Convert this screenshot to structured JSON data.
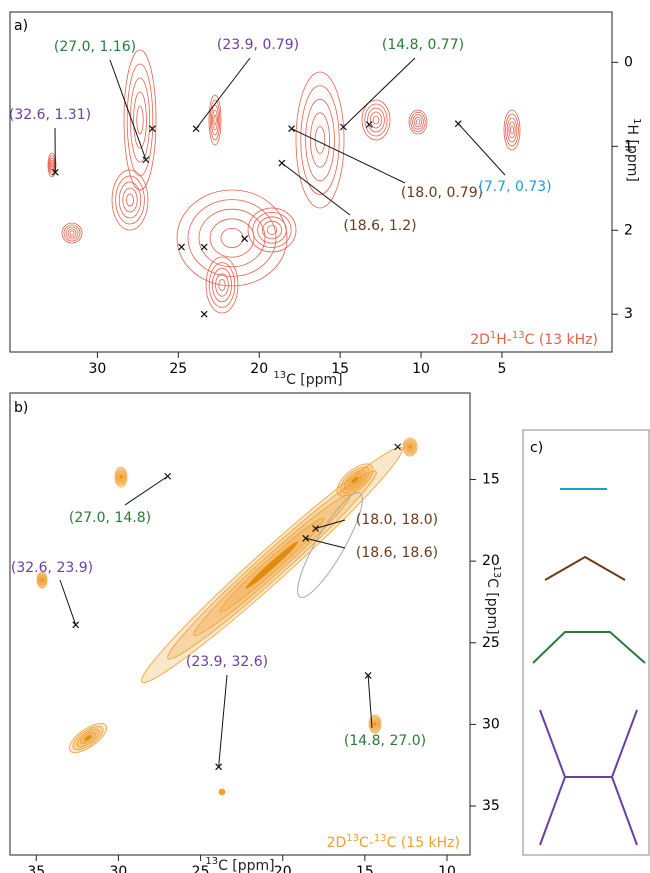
{
  "chart_data": [
    {
      "type": "scatter",
      "panel_label": "a)",
      "x_label": {
        "sup": "13",
        "text": "C [ppm]"
      },
      "y_label": {
        "sup": "1",
        "text": "H [ppm]"
      },
      "note": {
        "parts": [
          "2D",
          "1",
          "H-",
          "13",
          "C  (13 kHz)"
        ]
      },
      "xlim": [
        35.4,
        -1.8
      ],
      "ylim": [
        -0.6,
        3.45
      ],
      "xticks": [
        30,
        25,
        20,
        15,
        10,
        5
      ],
      "yticks": [
        0,
        1,
        2,
        3
      ],
      "color": "#e8604a",
      "points": {
        "x": [
          32.6,
          27.0,
          23.9,
          14.8,
          18.0,
          18.6,
          7.7,
          26.6,
          13.2,
          24.8,
          23.4,
          20.9,
          23.4
        ],
        "y": [
          1.31,
          1.16,
          0.79,
          0.77,
          0.79,
          1.2,
          0.73,
          0.79,
          0.74,
          2.2,
          2.2,
          2.1,
          3.0
        ]
      },
      "annotations": [
        {
          "text": "(32.6, 1.31)",
          "x": 32.6,
          "y": 1.31,
          "color": "#6a3fa0"
        },
        {
          "text": "(27.0, 1.16)",
          "x": 27.0,
          "y": 1.16,
          "color": "#2a7a3a"
        },
        {
          "text": "(23.9, 0.79)",
          "x": 23.9,
          "y": 0.79,
          "color": "#6a3fa0"
        },
        {
          "text": "(14.8, 0.77)",
          "x": 14.8,
          "y": 0.77,
          "color": "#2a7a3a"
        },
        {
          "text": "(18.0, 0.79)",
          "x": 18.0,
          "y": 0.79,
          "color": "#6b3a1a"
        },
        {
          "text": "(18.6, 1.2)",
          "x": 18.6,
          "y": 1.2,
          "color": "#6b3a1a"
        },
        {
          "text": "(7.7, 0.73)",
          "x": 7.7,
          "y": 0.73,
          "color": "#1aa0d8"
        }
      ]
    },
    {
      "type": "scatter",
      "panel_label": "b)",
      "x_label": {
        "sup": "13",
        "text": "C [ppm]"
      },
      "y_label": {
        "sup": "13",
        "text": "C [ppm]"
      },
      "note": {
        "parts": [
          "2D",
          "13",
          "C-",
          "13",
          "C (15 kHz)"
        ]
      },
      "xlim": [
        36.6,
        8.6
      ],
      "ylim": [
        9.7,
        38
      ],
      "xticks": [
        35,
        30,
        25,
        20,
        15,
        10
      ],
      "yticks": [
        15,
        20,
        25,
        30,
        35
      ],
      "color": "#f0a030",
      "points": {
        "x": [
          27.0,
          32.6,
          18.0,
          18.6,
          23.9,
          14.8,
          13.0
        ],
        "y": [
          14.8,
          23.9,
          18.0,
          18.6,
          32.6,
          27.0,
          13.0
        ]
      },
      "annotations": [
        {
          "text": "(27.0, 14.8)",
          "x": 27.0,
          "y": 14.8,
          "color": "#2a7a3a"
        },
        {
          "text": "(32.6, 23.9)",
          "x": 32.6,
          "y": 23.9,
          "color": "#6a3fa0"
        },
        {
          "text": "(18.0, 18.0)",
          "x": 18.0,
          "y": 18.0,
          "color": "#6b3a1a"
        },
        {
          "text": "(18.6, 18.6)",
          "x": 18.6,
          "y": 18.6,
          "color": "#6b3a1a"
        },
        {
          "text": "(23.9, 32.6)",
          "x": 23.9,
          "y": 32.6,
          "color": "#6a3fa0"
        },
        {
          "text": "(14.8, 27.0)",
          "x": 14.8,
          "y": 27.0,
          "color": "#2a7a3a"
        }
      ]
    },
    {
      "type": "diagram",
      "panel_label": "c)"
    }
  ]
}
